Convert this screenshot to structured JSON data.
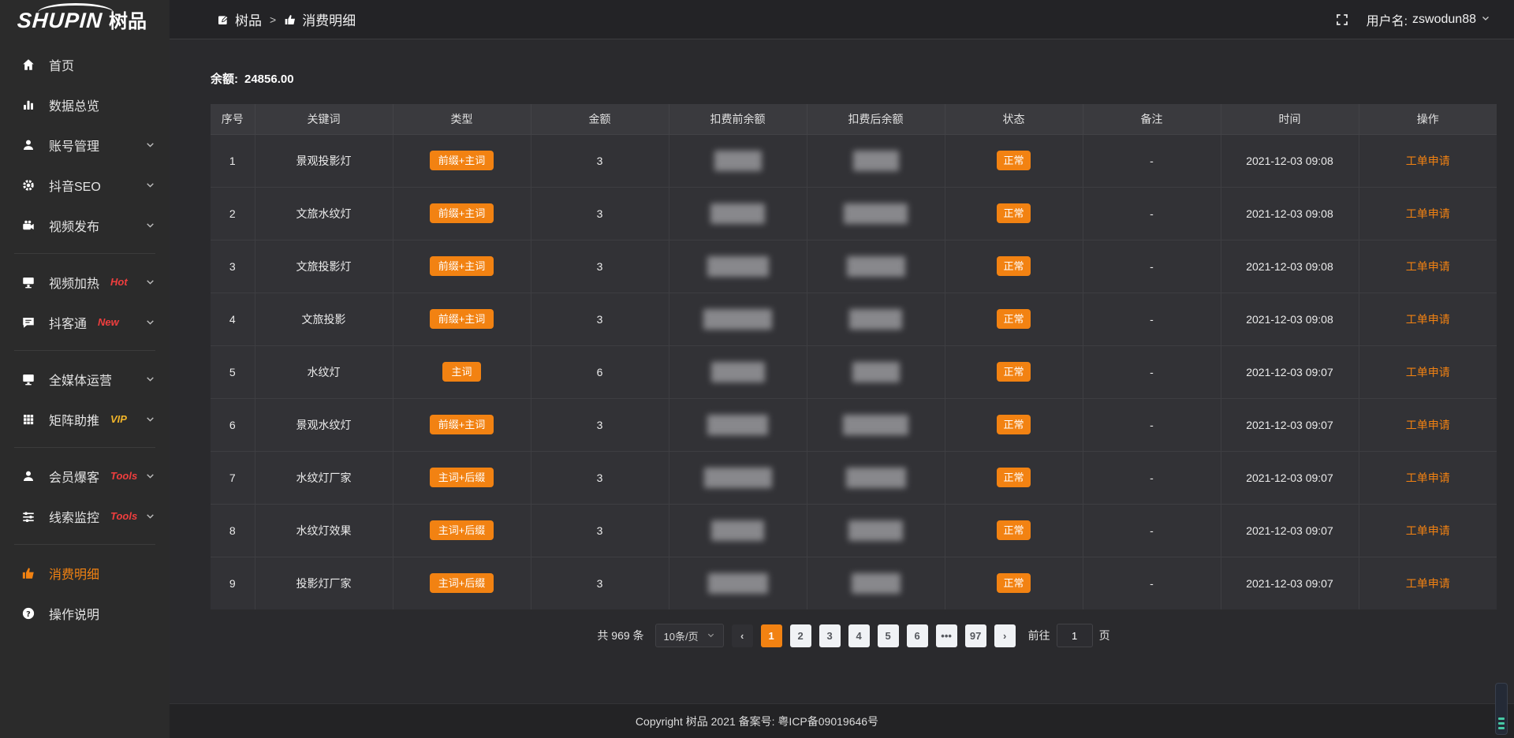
{
  "colors": {
    "accent": "#f28212",
    "badge_red": "#f03e3e",
    "badge_vip": "#f0b429"
  },
  "sidebar": {
    "logo_en": "SHUPIN",
    "logo_cn": "树品",
    "items": [
      {
        "type": "item",
        "icon": "home-icon",
        "label": "首页",
        "chevron": false
      },
      {
        "type": "item",
        "icon": "chart-icon",
        "label": "数据总览",
        "chevron": false
      },
      {
        "type": "item",
        "icon": "user-icon",
        "label": "账号管理",
        "chevron": true
      },
      {
        "type": "item",
        "icon": "gear-icon",
        "label": "抖音SEO",
        "chevron": true
      },
      {
        "type": "item",
        "icon": "camera-icon",
        "label": "视频发布",
        "chevron": true
      },
      {
        "type": "divider"
      },
      {
        "type": "item",
        "icon": "screen-icon",
        "label": "视频加热",
        "badge": "Hot",
        "badge_color": "#f03e3e",
        "chevron": true
      },
      {
        "type": "item",
        "icon": "chat-icon",
        "label": "抖客通",
        "badge": "New",
        "badge_color": "#f03e3e",
        "chevron": true
      },
      {
        "type": "divider"
      },
      {
        "type": "item",
        "icon": "monitor-icon",
        "label": "全媒体运营",
        "chevron": true
      },
      {
        "type": "item",
        "icon": "grid-icon",
        "label": "矩阵助推",
        "badge": "VIP",
        "badge_color": "#f0b429",
        "chevron": true
      },
      {
        "type": "divider"
      },
      {
        "type": "item",
        "icon": "member-icon",
        "label": "会员爆客",
        "badge": "Tools",
        "badge_color": "#f03e3e",
        "chevron": true
      },
      {
        "type": "item",
        "icon": "sliders-icon",
        "label": "线索监控",
        "badge": "Tools",
        "badge_color": "#f03e3e",
        "chevron": true
      },
      {
        "type": "divider"
      },
      {
        "type": "item",
        "icon": "like-icon",
        "label": "消费明细",
        "active": true
      },
      {
        "type": "item",
        "icon": "question-icon",
        "label": "操作说明"
      }
    ]
  },
  "topbar": {
    "breadcrumb": [
      {
        "icon": "edit-icon",
        "label": "树品"
      },
      {
        "icon": "like-icon",
        "label": "消费明细"
      }
    ],
    "separator": ">",
    "username_prefix": "用户名:",
    "username": "zswodun88"
  },
  "main": {
    "balance_label": "余额:",
    "balance_value": "24856.00",
    "table": {
      "headers": [
        "序号",
        "关键词",
        "类型",
        "金额",
        "扣费前余额",
        "扣费后余额",
        "状态",
        "备注",
        "时间",
        "操作"
      ],
      "rows": [
        {
          "no": "1",
          "keyword": "景观投影灯",
          "type": "前缀+主词",
          "amount": "3",
          "status": "正常",
          "remark": "-",
          "time": "2021-12-03 09:08",
          "action": "工单申请"
        },
        {
          "no": "2",
          "keyword": "文旅水纹灯",
          "type": "前缀+主词",
          "amount": "3",
          "status": "正常",
          "remark": "-",
          "time": "2021-12-03 09:08",
          "action": "工单申请"
        },
        {
          "no": "3",
          "keyword": "文旅投影灯",
          "type": "前缀+主词",
          "amount": "3",
          "status": "正常",
          "remark": "-",
          "time": "2021-12-03 09:08",
          "action": "工单申请"
        },
        {
          "no": "4",
          "keyword": "文旅投影",
          "type": "前缀+主词",
          "amount": "3",
          "status": "正常",
          "remark": "-",
          "time": "2021-12-03 09:08",
          "action": "工单申请"
        },
        {
          "no": "5",
          "keyword": "水纹灯",
          "type": "主词",
          "amount": "6",
          "status": "正常",
          "remark": "-",
          "time": "2021-12-03 09:07",
          "action": "工单申请"
        },
        {
          "no": "6",
          "keyword": "景观水纹灯",
          "type": "前缀+主词",
          "amount": "3",
          "status": "正常",
          "remark": "-",
          "time": "2021-12-03 09:07",
          "action": "工单申请"
        },
        {
          "no": "7",
          "keyword": "水纹灯厂家",
          "type": "主词+后缀",
          "amount": "3",
          "status": "正常",
          "remark": "-",
          "time": "2021-12-03 09:07",
          "action": "工单申请"
        },
        {
          "no": "8",
          "keyword": "水纹灯效果",
          "type": "主词+后缀",
          "amount": "3",
          "status": "正常",
          "remark": "-",
          "time": "2021-12-03 09:07",
          "action": "工单申请"
        },
        {
          "no": "9",
          "keyword": "投影灯厂家",
          "type": "主词+后缀",
          "amount": "3",
          "status": "正常",
          "remark": "-",
          "time": "2021-12-03 09:07",
          "action": "工单申请"
        }
      ]
    },
    "pagination": {
      "total": "共 969 条",
      "page_size": "10条/页",
      "prev": "‹",
      "next": "›",
      "pages": [
        "1",
        "2",
        "3",
        "4",
        "5",
        "6",
        "•••",
        "97"
      ],
      "active_page": "1",
      "goto_label": "前往",
      "goto_value": "1",
      "goto_suffix": "页"
    }
  },
  "footer": {
    "text": "Copyright 树品 2021 备案号: 粤ICP备09019646号"
  }
}
